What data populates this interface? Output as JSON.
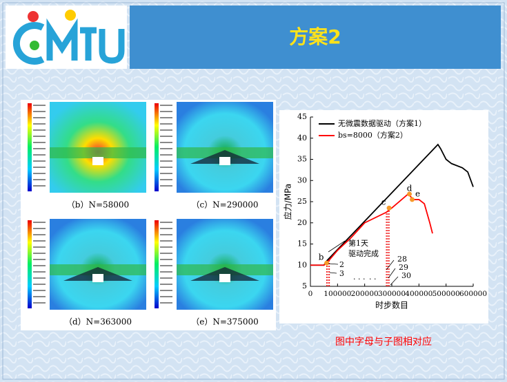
{
  "header": {
    "title": "方案2"
  },
  "panels": [
    {
      "caption": "（b）N=58000"
    },
    {
      "caption": "（c）N=290000"
    },
    {
      "caption": "（d）N=363000"
    },
    {
      "caption": "（e）N=375000"
    }
  ],
  "chart_data": {
    "type": "line",
    "x_label": "时步数目",
    "y_label": "应力/MPa",
    "xlim": [
      0,
      600000
    ],
    "xticks": [
      0,
      100000,
      200000,
      300000,
      400000,
      500000,
      600000
    ],
    "ylim": [
      5,
      45
    ],
    "yticks": [
      5,
      10,
      15,
      20,
      25,
      30,
      35,
      40,
      45
    ],
    "series": [
      {
        "name": "无微震数据驱动（方案1）",
        "color": "#000000",
        "x": [
          0,
          50000,
          60000,
          470000,
          480000,
          500000,
          520000,
          560000,
          580000,
          600000
        ],
        "values": [
          10,
          10,
          11,
          38.5,
          37.5,
          35,
          34,
          33,
          32,
          28.5
        ]
      },
      {
        "name": "bs=8000（方案2）",
        "color": "#ff0000",
        "x": [
          0,
          50000,
          60000,
          100000,
          150000,
          200000,
          280000,
          300000,
          360000,
          380000,
          400000,
          420000,
          440000,
          450000
        ],
        "values": [
          10,
          10,
          10.5,
          13.5,
          16.5,
          20,
          22.5,
          23.5,
          26.8,
          25.5,
          25.5,
          24.5,
          20,
          17.5
        ]
      }
    ],
    "points": [
      {
        "label": "b",
        "x": 60000,
        "y": 10.5
      },
      {
        "label": "c",
        "x": 290000,
        "y": 23.5
      },
      {
        "label": "d",
        "x": 365000,
        "y": 26.8
      },
      {
        "label": "e",
        "x": 375000,
        "y": 25.5
      }
    ],
    "drive_lines": [
      {
        "x": 60000,
        "y": 10.5
      },
      {
        "x": 65000,
        "y": 11
      },
      {
        "x": 70000,
        "y": 11.5
      },
      {
        "x": 280000,
        "y": 22.5
      },
      {
        "x": 285000,
        "y": 23
      },
      {
        "x": 290000,
        "y": 23.5
      }
    ],
    "notes": [
      "第1天",
      "驱动完成",
      "2",
      "3",
      "28",
      "29",
      "30",
      "· · ·",
      "· ·"
    ]
  },
  "footer": {
    "caption": "图中字母与子图相对应"
  }
}
